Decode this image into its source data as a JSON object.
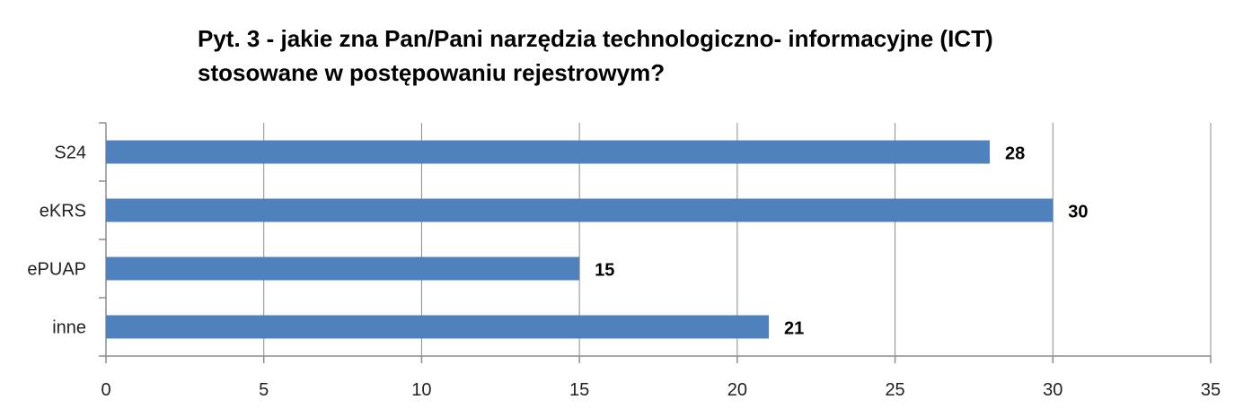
{
  "chart_data": {
    "type": "bar",
    "orientation": "horizontal",
    "title_lines": [
      "Pyt. 3 - jakie zna Pan/Pani narzędzia technologiczno- informacyjne (ICT)",
      "stosowane w postępowaniu rejestrowym?"
    ],
    "categories": [
      "S24",
      "eKRS",
      "ePUAP",
      "inne"
    ],
    "values": [
      28,
      30,
      15,
      21
    ],
    "data_labels": [
      "28",
      "30",
      "15",
      "21"
    ],
    "xlim": [
      0,
      35
    ],
    "x_ticks": [
      0,
      5,
      10,
      15,
      20,
      25,
      30,
      35
    ],
    "x_tick_labels": [
      "0",
      "5",
      "10",
      "15",
      "20",
      "25",
      "30",
      "35"
    ],
    "xlabel": "",
    "ylabel": "",
    "grid": "vertical",
    "legend": "none",
    "bar_color": "#4F81BD"
  }
}
